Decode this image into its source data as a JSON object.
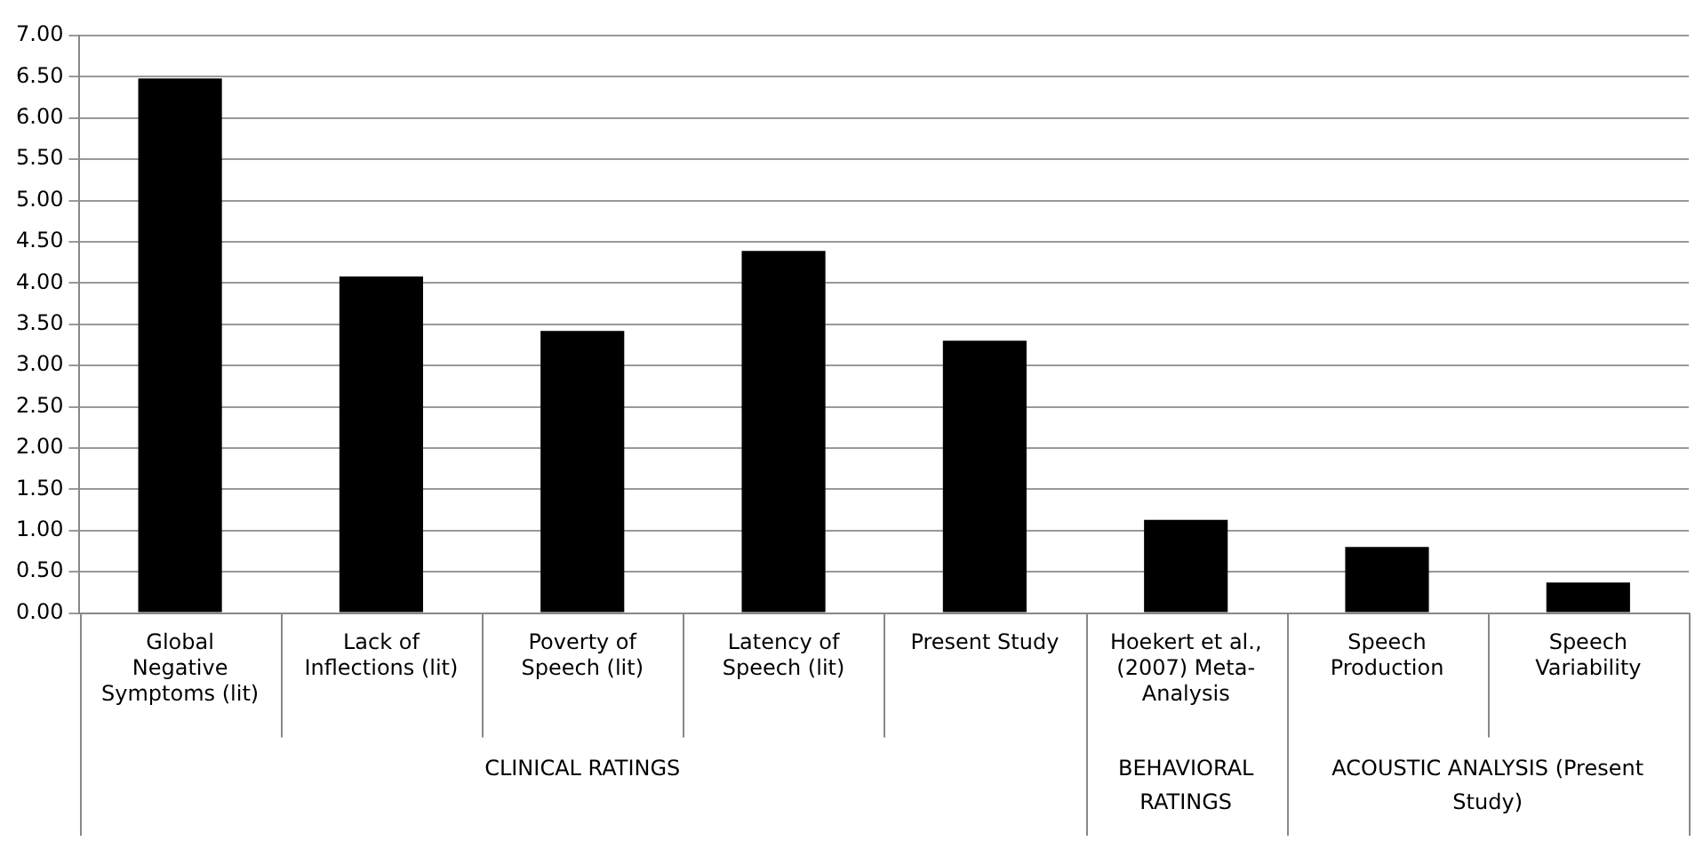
{
  "chart_data": {
    "type": "bar",
    "categories": [
      "Global Negative Symptoms (lit)",
      "Lack of Inflections (lit)",
      "Poverty of Speech (lit)",
      "Latency of Speech (lit)",
      "Present Study",
      "Hoekert et al., (2007) Meta-Analysis",
      "Speech Production",
      "Speech Variability"
    ],
    "values": [
      6.48,
      4.08,
      3.42,
      4.39,
      3.3,
      1.13,
      0.8,
      0.37
    ],
    "color": "#000000",
    "ylim": [
      0,
      7
    ],
    "yticks": [
      {
        "value": 0,
        "label": "0.00"
      },
      {
        "value": 0.5,
        "label": "0.50"
      },
      {
        "value": 1,
        "label": "1.00"
      },
      {
        "value": 1.5,
        "label": "1.50"
      },
      {
        "value": 2,
        "label": "2.00"
      },
      {
        "value": 2.5,
        "label": "2.50"
      },
      {
        "value": 3,
        "label": "3.00"
      },
      {
        "value": 3.5,
        "label": "3.50"
      },
      {
        "value": 4,
        "label": "4.00"
      },
      {
        "value": 4.5,
        "label": "4.50"
      },
      {
        "value": 5,
        "label": "5.00"
      },
      {
        "value": 5.5,
        "label": "5.50"
      },
      {
        "value": 6,
        "label": "6.00"
      },
      {
        "value": 6.5,
        "label": "6.50"
      },
      {
        "value": 7,
        "label": "7.00"
      }
    ],
    "grid": "y",
    "legend": false,
    "annotations": [
      "CLINICAL RATINGS",
      "BEHAVIORAL RATINGS",
      "ACOUSTIC ANALYSIS (Present Study)"
    ]
  }
}
